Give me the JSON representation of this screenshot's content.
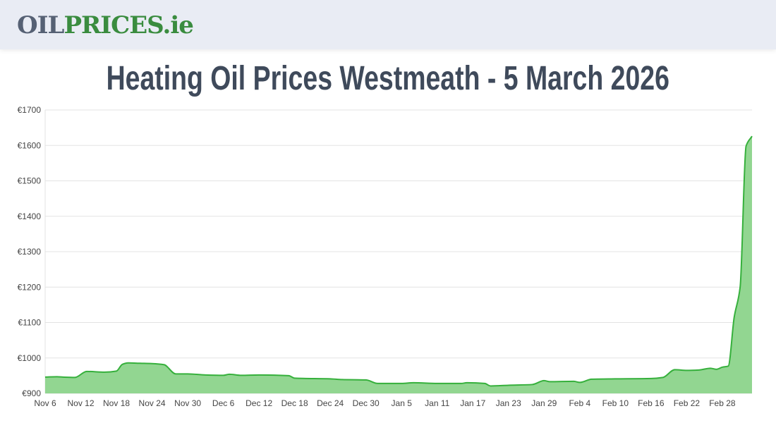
{
  "header": {
    "logo_part1": "OIL",
    "logo_part2": "PRICES.ie"
  },
  "title": "Heating Oil Prices Westmeath - 5 March 2026",
  "colors": {
    "line": "#36b03c",
    "fill": "#92d691",
    "grid": "#e3e3e3",
    "title": "#3f4a5b",
    "logo_grey": "#566174",
    "logo_green": "#3a8c3f"
  },
  "chart_data": {
    "type": "area",
    "title": "Heating Oil Prices Westmeath - 5 March 2026",
    "xlabel": "",
    "ylabel": "",
    "ylim": [
      900,
      1700
    ],
    "y_ticks": [
      "€900",
      "€1000",
      "€1100",
      "€1200",
      "€1300",
      "€1400",
      "€1500",
      "€1600",
      "€1700"
    ],
    "y_tick_values": [
      900,
      1000,
      1100,
      1200,
      1300,
      1400,
      1500,
      1600,
      1700
    ],
    "x_ticks": [
      "Nov 6",
      "Nov 12",
      "Nov 18",
      "Nov 24",
      "Nov 30",
      "Dec 6",
      "Dec 12",
      "Dec 18",
      "Dec 24",
      "Dec 30",
      "Jan 5",
      "Jan 11",
      "Jan 17",
      "Jan 23",
      "Jan 29",
      "Feb 4",
      "Feb 10",
      "Feb 16",
      "Feb 22",
      "Feb 28"
    ],
    "x_range": [
      "2025-11-06",
      "2026-03-05"
    ],
    "grid": true,
    "legend": "none",
    "points": [
      [
        "2025-11-06",
        946
      ],
      [
        "2025-11-08",
        947
      ],
      [
        "2025-11-09",
        946
      ],
      [
        "2025-11-11",
        945
      ],
      [
        "2025-11-13",
        962
      ],
      [
        "2025-11-16",
        960
      ],
      [
        "2025-11-18",
        963
      ],
      [
        "2025-11-19",
        982
      ],
      [
        "2025-11-20",
        986
      ],
      [
        "2025-11-22",
        985
      ],
      [
        "2025-11-24",
        984
      ],
      [
        "2025-11-26",
        981
      ],
      [
        "2025-11-28",
        955
      ],
      [
        "2025-11-30",
        955
      ],
      [
        "2025-12-03",
        952
      ],
      [
        "2025-12-06",
        951
      ],
      [
        "2025-12-07",
        954
      ],
      [
        "2025-12-09",
        951
      ],
      [
        "2025-12-12",
        952
      ],
      [
        "2025-12-17",
        950
      ],
      [
        "2025-12-18",
        943
      ],
      [
        "2025-12-24",
        941
      ],
      [
        "2025-12-26",
        939
      ],
      [
        "2025-12-30",
        938
      ],
      [
        "2026-01-01",
        928
      ],
      [
        "2026-01-05",
        928
      ],
      [
        "2026-01-07",
        930
      ],
      [
        "2026-01-11",
        928
      ],
      [
        "2026-01-15",
        928
      ],
      [
        "2026-01-16",
        930
      ],
      [
        "2026-01-19",
        928
      ],
      [
        "2026-01-20",
        921
      ],
      [
        "2026-01-23",
        923
      ],
      [
        "2026-01-27",
        925
      ],
      [
        "2026-01-29",
        936
      ],
      [
        "2026-01-30",
        933
      ],
      [
        "2026-02-03",
        934
      ],
      [
        "2026-02-04",
        931
      ],
      [
        "2026-02-06",
        940
      ],
      [
        "2026-02-10",
        941
      ],
      [
        "2026-02-16",
        942
      ],
      [
        "2026-02-18",
        945
      ],
      [
        "2026-02-20",
        967
      ],
      [
        "2026-02-22",
        965
      ],
      [
        "2026-02-24",
        966
      ],
      [
        "2026-02-26",
        971
      ],
      [
        "2026-02-27",
        968
      ],
      [
        "2026-02-28",
        974
      ],
      [
        "2026-03-01",
        977
      ],
      [
        "2026-03-02",
        1115
      ],
      [
        "2026-03-03",
        1200
      ],
      [
        "2026-03-04",
        1598
      ],
      [
        "2026-03-05",
        1626
      ]
    ]
  }
}
